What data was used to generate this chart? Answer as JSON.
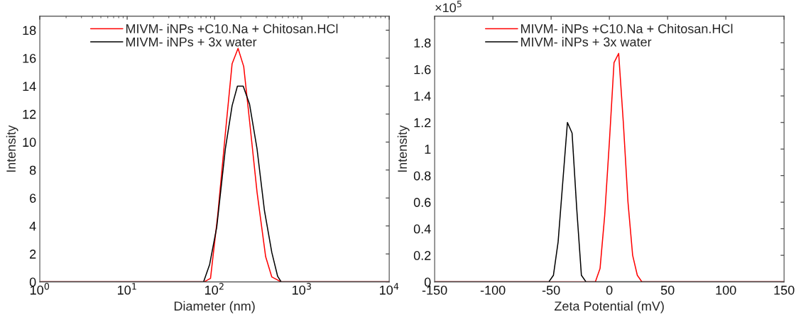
{
  "chart_data": [
    {
      "type": "line",
      "xlabel": "Diameter (nm)",
      "ylabel": "Intensity",
      "log": "x",
      "legend": "top",
      "grid": false,
      "xlim": [
        1,
        10000
      ],
      "xticks": [
        {
          "value": 1,
          "label": "10$^{0}$"
        },
        {
          "value": 10,
          "label": "10$^{1}$"
        },
        {
          "value": 100,
          "label": "10$^{2}$"
        },
        {
          "value": 1000,
          "label": "10$^{3}$"
        },
        {
          "value": 10000,
          "label": "10$^{4}$"
        }
      ],
      "ylim": [
        0,
        19
      ],
      "yticks": [
        0,
        2,
        4,
        6,
        8,
        10,
        12,
        14,
        16,
        18
      ],
      "series": [
        {
          "name": "MIVM- iNPs +C10.Na + Chitosan.HCl",
          "color": "#ff0000",
          "x": [
            1,
            76,
            90,
            109,
            133,
            159,
            186,
            216,
            252,
            307,
            385,
            453,
            580,
            10000
          ],
          "values": [
            0,
            0,
            0.25,
            4.8,
            10.6,
            15.6,
            16.7,
            15.4,
            11.5,
            6.4,
            1.8,
            0.35,
            0,
            0
          ]
        },
        {
          "name": "MIVM- iNPs + 3x water",
          "color": "#000000",
          "x": [
            1,
            75,
            88,
            106,
            133,
            159,
            183,
            213,
            252,
            307,
            373,
            453,
            528,
            580,
            10000
          ],
          "values": [
            0,
            0,
            1.25,
            3.9,
            9.5,
            12.6,
            14.0,
            14.0,
            12.7,
            9.5,
            5.1,
            2.1,
            0.4,
            0,
            0
          ]
        }
      ]
    },
    {
      "type": "line",
      "xlabel": "Zeta Potential (mV)",
      "ylabel": "Intensity",
      "legend": "top",
      "grid": false,
      "annotations": [
        "×10$^{5}$"
      ],
      "xlim": [
        -150,
        150
      ],
      "xticks": [
        -150,
        -100,
        -50,
        0,
        50,
        100,
        150
      ],
      "ylim": [
        0,
        2
      ],
      "yticks": [
        0,
        0.2,
        0.4,
        0.6,
        0.8,
        1,
        1.2,
        1.4,
        1.6,
        1.8
      ],
      "series": [
        {
          "name": "MIVM- iNPs +C10.Na + Chitosan.HCl",
          "color": "#ff0000",
          "x": [
            -150,
            -12,
            -8,
            -4,
            0,
            4,
            8,
            12,
            16,
            20,
            24,
            28,
            150
          ],
          "values": [
            0,
            0,
            0.1,
            0.5,
            1.05,
            1.65,
            1.72,
            1.2,
            0.6,
            0.2,
            0.05,
            0,
            0
          ]
        },
        {
          "name": "MIVM- iNPs + 3x water",
          "color": "#000000",
          "x": [
            -150,
            -52,
            -48,
            -44,
            -40,
            -36,
            -32,
            -28,
            -24,
            -20,
            150
          ],
          "values": [
            0,
            0,
            0.05,
            0.3,
            0.75,
            1.2,
            1.12,
            0.55,
            0.05,
            0,
            0
          ]
        }
      ]
    }
  ]
}
